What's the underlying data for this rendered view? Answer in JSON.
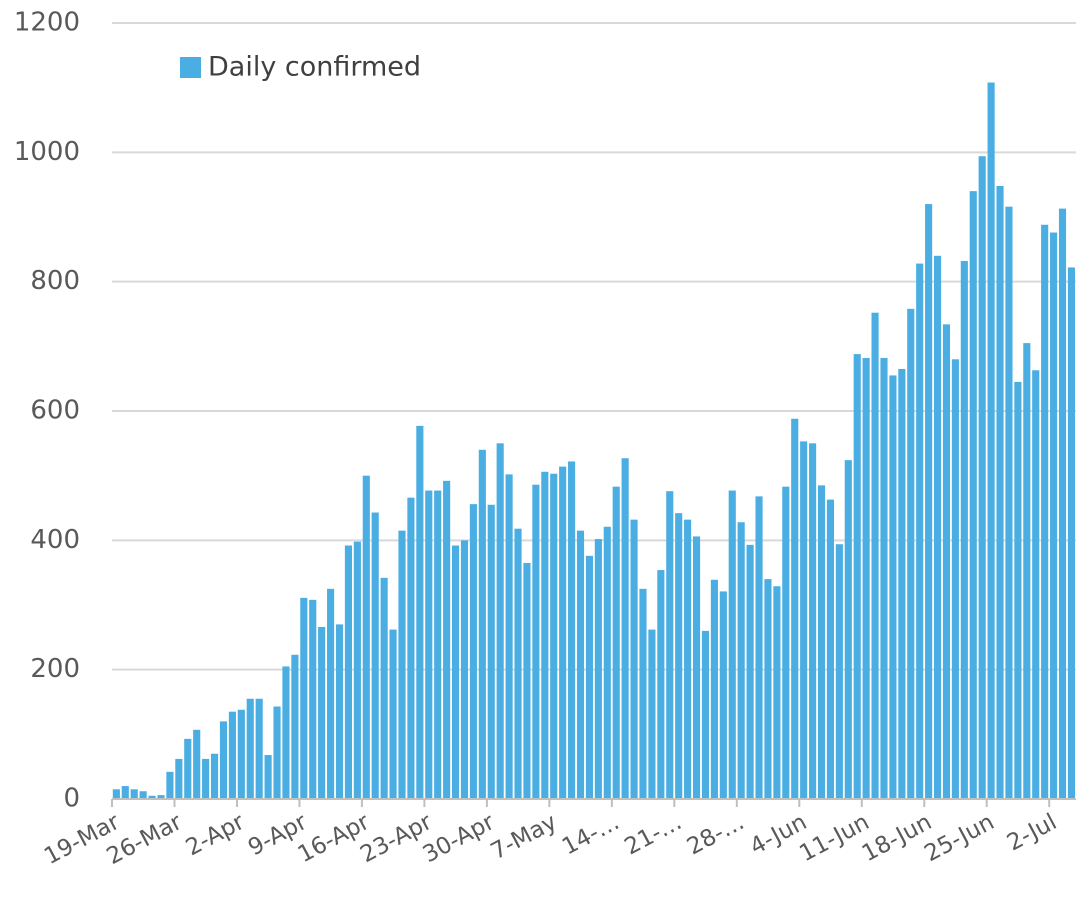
{
  "chart_data": {
    "type": "bar",
    "series": [
      {
        "name": "Daily confirmed",
        "color": "#4baee3",
        "values": [
          15,
          20,
          15,
          12,
          5,
          6,
          42,
          62,
          93,
          107,
          62,
          70,
          120,
          135,
          138,
          155,
          155,
          68,
          143,
          205,
          223,
          311,
          308,
          266,
          325,
          270,
          392,
          398,
          500,
          443,
          342,
          262,
          415,
          466,
          577,
          477,
          477,
          492,
          392,
          400,
          456,
          540,
          455,
          550,
          502,
          418,
          365,
          486,
          506,
          503,
          514,
          522,
          415,
          376,
          402,
          421,
          483,
          527,
          432,
          325,
          262,
          354,
          476,
          442,
          432,
          406,
          260,
          339,
          321,
          477,
          428,
          393,
          468,
          340,
          329,
          483,
          588,
          553,
          550,
          485,
          463,
          394,
          524,
          688,
          682,
          752,
          682,
          655,
          665,
          758,
          828,
          920,
          840,
          734,
          680,
          832,
          940,
          994,
          1108,
          948,
          916,
          645,
          705,
          663,
          888,
          876,
          913,
          822
        ]
      }
    ],
    "categories": [
      "19-Mar",
      null,
      null,
      null,
      null,
      null,
      null,
      "26-Mar",
      null,
      null,
      null,
      null,
      null,
      null,
      "2-Apr",
      null,
      null,
      null,
      null,
      null,
      null,
      "9-Apr",
      null,
      null,
      null,
      null,
      null,
      null,
      "16-Apr",
      null,
      null,
      null,
      null,
      null,
      null,
      "23-Apr",
      null,
      null,
      null,
      null,
      null,
      null,
      "30-Apr",
      null,
      null,
      null,
      null,
      null,
      null,
      "7-May",
      null,
      null,
      null,
      null,
      null,
      null,
      "14-…",
      null,
      null,
      null,
      null,
      null,
      null,
      "21-…",
      null,
      null,
      null,
      null,
      null,
      null,
      "28-…",
      null,
      null,
      null,
      null,
      null,
      null,
      "4-Jun",
      null,
      null,
      null,
      null,
      null,
      null,
      "11-Jun",
      null,
      null,
      null,
      null,
      null,
      null,
      "18-Jun",
      null,
      null,
      null,
      null,
      null,
      null,
      "25-Jun",
      null,
      null,
      null,
      null,
      null,
      null,
      "2-Jul",
      null,
      null
    ],
    "ylim": [
      0,
      1200
    ],
    "yticks": [
      0,
      200,
      400,
      600,
      800,
      1000,
      1200
    ],
    "grid": true,
    "legend": "top-left"
  }
}
